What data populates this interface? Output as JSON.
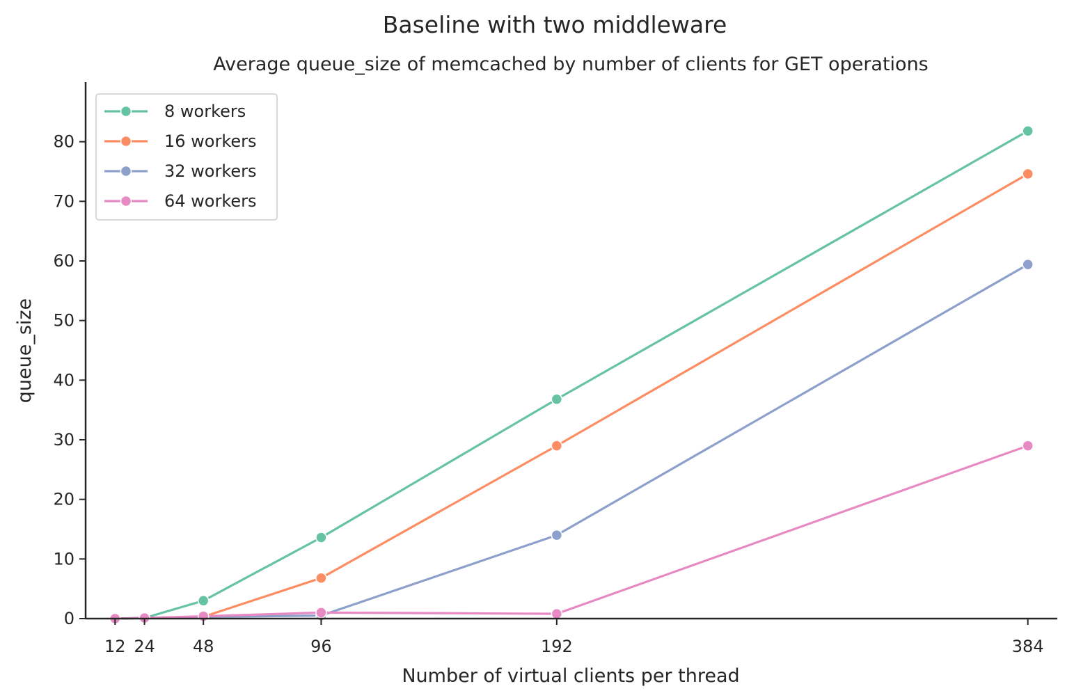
{
  "chart_data": {
    "type": "line",
    "suptitle": "Baseline with two middleware",
    "title": "Average queue_size of memcached by number of clients for GET operations",
    "xlabel": "Number of virtual clients per thread",
    "ylabel": "queue_size",
    "x": [
      12,
      24,
      48,
      96,
      192,
      384
    ],
    "x_tick_labels": [
      "12",
      "24",
      "48",
      "96",
      "192",
      "384"
    ],
    "xlim": [
      0,
      396
    ],
    "ylim": [
      0,
      90
    ],
    "y_ticks": [
      0,
      10,
      20,
      30,
      40,
      50,
      60,
      70,
      80
    ],
    "y_tick_labels": [
      "0",
      "10",
      "20",
      "30",
      "40",
      "50",
      "60",
      "70",
      "80"
    ],
    "legend_position": "top-left",
    "grid": false,
    "series": [
      {
        "name": "8 workers",
        "color": "#66c2a5",
        "values": [
          0.0,
          0.1,
          3.0,
          13.6,
          36.8,
          81.8
        ]
      },
      {
        "name": "16 workers",
        "color": "#fc8d62",
        "values": [
          0.0,
          0.1,
          0.3,
          6.8,
          29.0,
          74.6
        ]
      },
      {
        "name": "32 workers",
        "color": "#8da0cb",
        "values": [
          0.0,
          0.1,
          0.3,
          0.5,
          14.0,
          59.4
        ]
      },
      {
        "name": "64 workers",
        "color": "#e78ac3",
        "values": [
          0.0,
          0.1,
          0.4,
          1.0,
          0.8,
          29.0
        ]
      }
    ]
  }
}
